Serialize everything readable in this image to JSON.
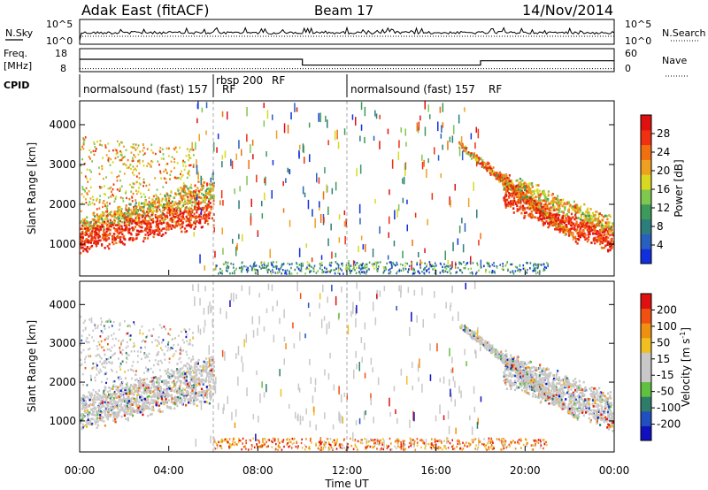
{
  "header": {
    "station": "Adak East (fitACF)",
    "beam": "Beam 17",
    "date": "14/Nov/2014"
  },
  "colors": {
    "power_scale": [
      "#1030e0",
      "#2860c0",
      "#2e7d7d",
      "#3c9a5a",
      "#7ec850",
      "#d8d820",
      "#f0a020",
      "#f07010",
      "#f03010",
      "#e01010"
    ],
    "velocity_scale": [
      "#1010c0",
      "#2050c0",
      "#2e7d6a",
      "#60c040",
      "#c8c8c8",
      "#c8c8c8",
      "#f0c020",
      "#f09010",
      "#f05010",
      "#e01010"
    ],
    "trace": "#000000"
  },
  "chart_data": [
    {
      "type": "line",
      "id": "noise",
      "left_label": "N.Sky",
      "right_label": "N.Search",
      "left_ticks": [
        "10^5",
        "10^0"
      ],
      "right_ticks": [
        "10^5",
        "10^0"
      ]
    },
    {
      "type": "line",
      "id": "freq_nave",
      "left_label_1": "Freq.",
      "left_label_2": "[MHz]",
      "right_label": "Nave",
      "left_ticks": [
        18,
        8
      ],
      "right_ticks": [
        60,
        0
      ],
      "freq_steps": [
        {
          "from_h": 0,
          "to_h": 10,
          "mhz": 13.7
        },
        {
          "from_h": 10,
          "to_h": 18,
          "mhz": 10.6
        },
        {
          "from_h": 18,
          "to_h": 24,
          "mhz": 12.9
        }
      ],
      "nave_dotted": 4
    },
    {
      "type": "table",
      "id": "cpid",
      "label": "CPID",
      "segments": [
        {
          "from_h": 0,
          "to_h": 6,
          "label": "normalsound (fast) 157"
        },
        {
          "from_h": 6,
          "to_h": 12,
          "label": "rbsp 200"
        },
        {
          "from_h": 12,
          "to_h": 24,
          "label": "normalsound (fast) 157"
        }
      ],
      "rf_label": "RF"
    },
    {
      "type": "heatmap",
      "id": "power",
      "ylabel": "Slant Range [km]",
      "yticks": [
        1000,
        2000,
        3000,
        4000
      ],
      "ylim": [
        200,
        4600
      ],
      "xlim_hours": [
        0,
        24
      ],
      "colorbar_label": "Power [dB]",
      "colorbar_ticks": [
        28,
        24,
        20,
        16,
        12,
        8,
        4
      ],
      "colorbar_range": [
        0,
        32
      ]
    },
    {
      "type": "heatmap",
      "id": "velocity",
      "ylabel": "Slant Range [km]",
      "yticks": [
        1000,
        2000,
        3000,
        4000
      ],
      "ylim": [
        200,
        4600
      ],
      "xlim_hours": [
        0,
        24
      ],
      "colorbar_label": "Velocity [m s",
      "colorbar_label_sup": "-1",
      "colorbar_label_end": "]",
      "colorbar_ticks": [
        200,
        100,
        50,
        15,
        -15,
        -50,
        -100,
        -200
      ]
    }
  ],
  "x_axis": {
    "ticks": [
      "00:00",
      "04:00",
      "08:00",
      "12:00",
      "16:00",
      "20:00",
      "00:00"
    ],
    "label": "Time UT"
  }
}
